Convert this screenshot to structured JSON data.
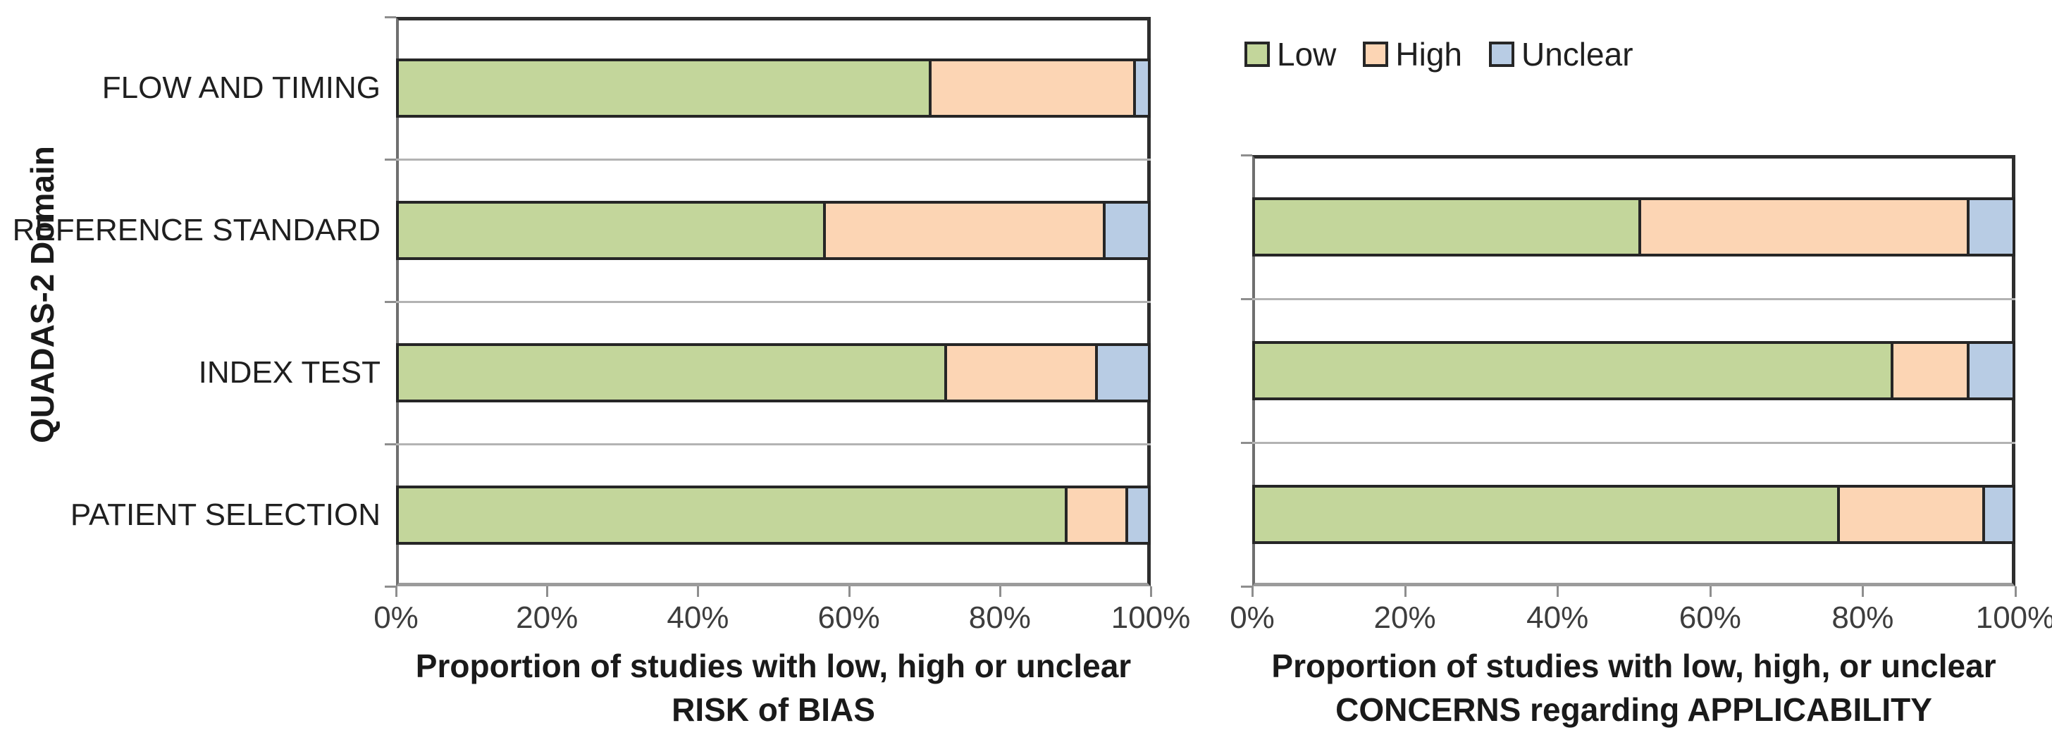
{
  "figure": {
    "y_axis_title": "QUADAS-2 Domain",
    "legend": {
      "position": "top-right",
      "items": [
        {
          "label": "Low",
          "color": "#c3d69b"
        },
        {
          "label": "High",
          "color": "#fcd5b4"
        },
        {
          "label": "Unclear",
          "color": "#b8cce4"
        }
      ]
    },
    "colors": {
      "bar_border": "#262626",
      "plot_frame": "#2e2e2e",
      "axis_line": "#9b9b9b",
      "gridline": "#b3b3b3",
      "text": "#1f1f1f"
    }
  },
  "chart_data": [
    {
      "id": "risk_of_bias",
      "type": "bar",
      "orientation": "horizontal",
      "stacked": true,
      "unit": "percent",
      "xlabel_lines": [
        "Proportion of studies with low, high or unclear",
        "RISK of BIAS"
      ],
      "ylabel": "QUADAS-2 Domain",
      "xlim": [
        0,
        100
      ],
      "x_ticks": [
        "0%",
        "20%",
        "40%",
        "60%",
        "80%",
        "100%"
      ],
      "grid": "category-separators",
      "show_category_labels": true,
      "categories": [
        "FLOW AND TIMING",
        "REFERENCE STANDARD",
        "INDEX TEST",
        "PATIENT SELECTION"
      ],
      "series": [
        {
          "name": "Low",
          "color": "#c3d69b",
          "values": [
            71,
            57,
            73,
            89
          ]
        },
        {
          "name": "High",
          "color": "#fcd5b4",
          "values": [
            27,
            37,
            20,
            8
          ]
        },
        {
          "name": "Unclear",
          "color": "#b8cce4",
          "values": [
            2,
            6,
            7,
            3
          ]
        }
      ]
    },
    {
      "id": "applicability_concerns",
      "type": "bar",
      "orientation": "horizontal",
      "stacked": true,
      "unit": "percent",
      "xlabel_lines": [
        "Proportion of studies with low, high, or unclear",
        "CONCERNS regarding APPLICABILITY"
      ],
      "ylabel": "",
      "xlim": [
        0,
        100
      ],
      "x_ticks": [
        "0%",
        "20%",
        "40%",
        "60%",
        "80%",
        "100%"
      ],
      "grid": "category-separators",
      "show_category_labels": false,
      "categories": [
        "REFERENCE STANDARD",
        "INDEX TEST",
        "PATIENT SELECTION"
      ],
      "series": [
        {
          "name": "Low",
          "color": "#c3d69b",
          "values": [
            51,
            84,
            77
          ]
        },
        {
          "name": "High",
          "color": "#fcd5b4",
          "values": [
            43,
            10,
            19
          ]
        },
        {
          "name": "Unclear",
          "color": "#b8cce4",
          "values": [
            6,
            6,
            4
          ]
        }
      ]
    }
  ]
}
